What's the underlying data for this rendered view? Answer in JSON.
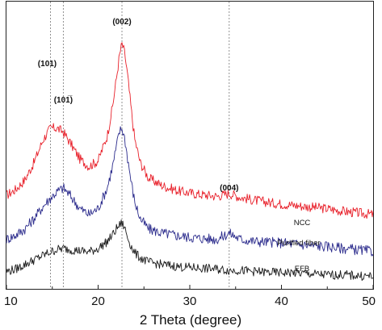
{
  "chart_data": {
    "type": "line",
    "title": "",
    "xlabel": "2 Theta (degree)",
    "ylabel": "",
    "xlim": [
      10,
      50
    ],
    "xticks": [
      "10",
      "20",
      "30",
      "40",
      "50"
    ],
    "grid": false,
    "y_axis_shown": false,
    "reference_lines": [
      {
        "x": 14.8
      },
      {
        "x": 16.2
      },
      {
        "x": 22.6
      },
      {
        "x": 34.3
      }
    ],
    "peak_labels": [
      {
        "text": "(101)",
        "x": 14.8
      },
      {
        "text": "(101̅)",
        "x": 16.2
      },
      {
        "text": "(002)",
        "x": 22.6
      },
      {
        "text": "(004)",
        "x": 34.3
      }
    ],
    "series": [
      {
        "name": "NCC",
        "color": "#e8202a",
        "x": [
          10,
          11,
          12,
          13,
          14,
          14.8,
          15.5,
          16.2,
          17,
          18,
          19,
          20,
          21,
          21.6,
          22,
          22.3,
          22.6,
          22.9,
          23.2,
          23.6,
          24,
          24.6,
          25.5,
          27,
          29,
          31,
          33,
          34.3,
          35.5,
          37,
          39,
          41,
          43,
          45,
          47,
          49,
          50
        ],
        "values": [
          21,
          24,
          29,
          38,
          50,
          56,
          56,
          54,
          48,
          40,
          36,
          39,
          52,
          68,
          82,
          93,
          100,
          95,
          84,
          66,
          50,
          38,
          30,
          26,
          23,
          21.5,
          20.5,
          22,
          20,
          18.5,
          17,
          16,
          15,
          14,
          12.5,
          11.5,
          11
        ]
      },
      {
        "name": "Purified fiber",
        "color": "#2b2b8c",
        "x": [
          10,
          11,
          12,
          13,
          14,
          14.8,
          15.5,
          16.2,
          17,
          18,
          19,
          20,
          21,
          21.6,
          22,
          22.3,
          22.6,
          22.9,
          23.2,
          23.6,
          24,
          24.6,
          25.5,
          27,
          29,
          31,
          33,
          34.3,
          35.5,
          37,
          39,
          41,
          43,
          45,
          47,
          49,
          50
        ],
        "values": [
          10,
          12,
          15,
          20,
          26,
          30,
          33,
          35,
          31,
          25,
          22,
          25,
          35,
          46,
          55,
          62,
          64,
          59,
          50,
          38,
          28,
          20,
          15,
          13,
          11.5,
          10.5,
          10,
          13,
          10,
          9,
          8.5,
          8,
          7,
          6.5,
          5.5,
          4.5,
          4
        ]
      },
      {
        "name": "EFB",
        "color": "#1a1a1a",
        "x": [
          10,
          11,
          12,
          13,
          14,
          14.8,
          15.5,
          16.2,
          17,
          18,
          19,
          20,
          21,
          21.6,
          22,
          22.3,
          22.6,
          22.9,
          23.2,
          23.6,
          24,
          24.6,
          25.5,
          27,
          29,
          31,
          33,
          34.3,
          35.5,
          37,
          39,
          41,
          43,
          45,
          47,
          49,
          50
        ],
        "values": [
          3,
          4,
          6,
          8,
          10,
          11.5,
          12.5,
          13,
          12.5,
          12,
          11.5,
          13,
          16,
          19,
          21.5,
          23,
          24,
          22,
          18,
          14,
          11,
          9,
          7,
          6,
          5,
          4.5,
          4,
          3.5,
          3.5,
          3,
          2.5,
          2.5,
          2,
          1.5,
          1.5,
          1,
          1
        ]
      }
    ],
    "legend": "inline labels near right end of each curve"
  }
}
